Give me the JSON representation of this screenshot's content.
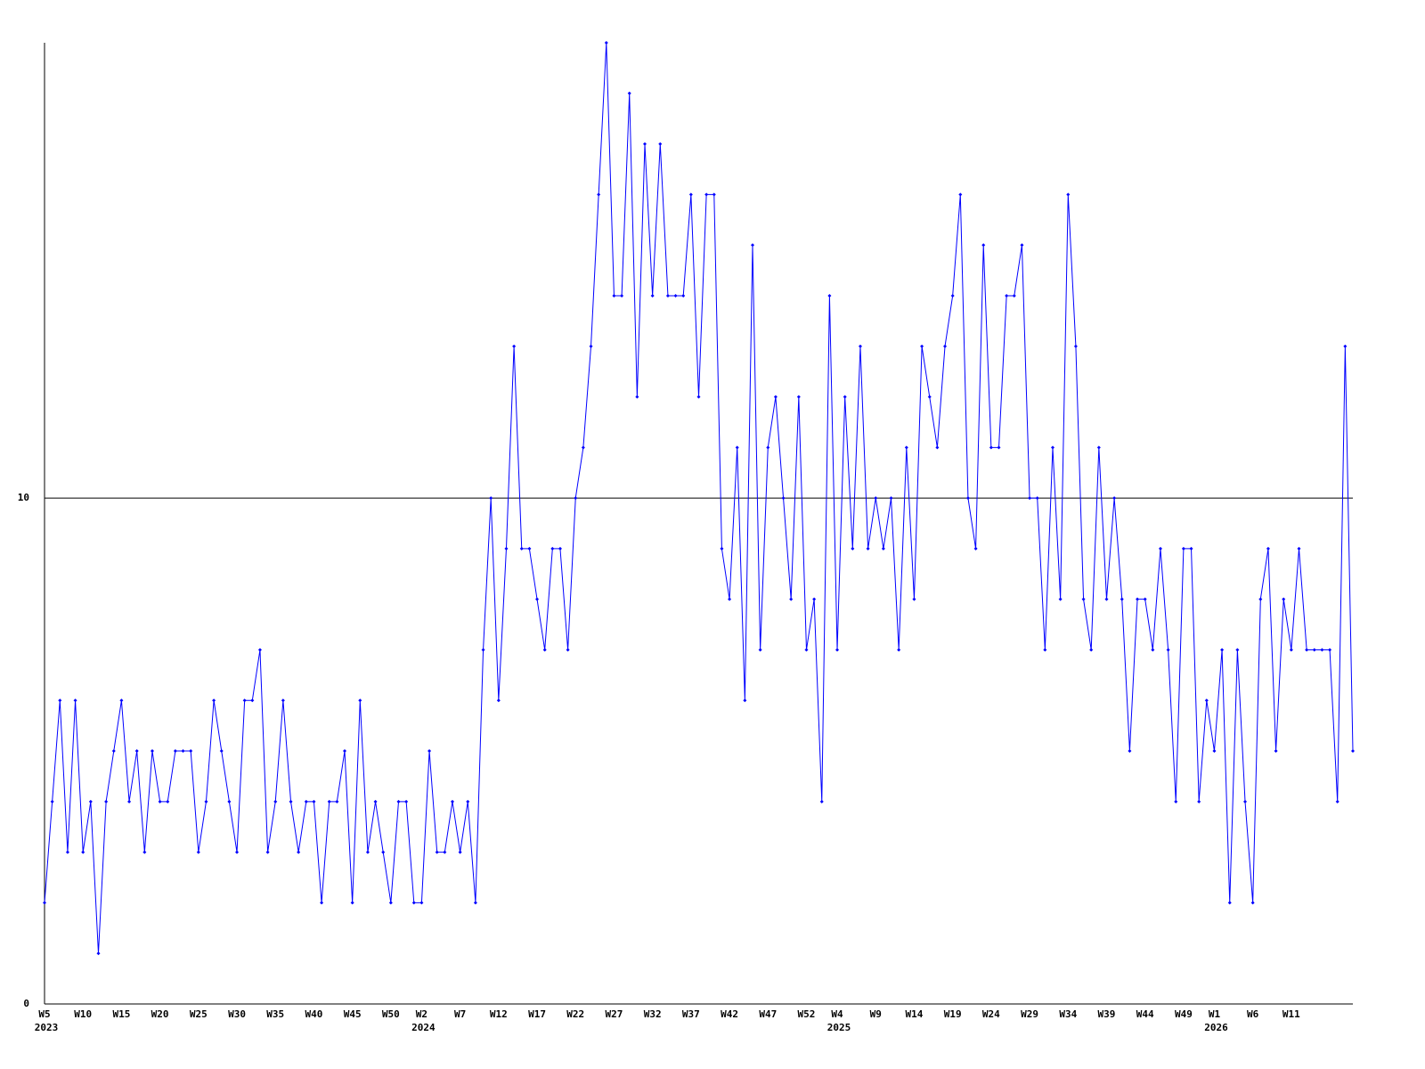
{
  "chart_data": {
    "type": "line",
    "categories": [
      "W5",
      null,
      null,
      null,
      null,
      "W10",
      null,
      null,
      null,
      null,
      "W15",
      null,
      null,
      null,
      null,
      "W20",
      null,
      null,
      null,
      null,
      "W25",
      null,
      null,
      null,
      null,
      "W30",
      null,
      null,
      null,
      null,
      "W35",
      null,
      null,
      null,
      null,
      "W40",
      null,
      null,
      null,
      null,
      "W45",
      null,
      null,
      null,
      null,
      "W50",
      null,
      null,
      null,
      "W2",
      null,
      null,
      null,
      null,
      "W7",
      null,
      null,
      null,
      null,
      "W12",
      null,
      null,
      null,
      null,
      "W17",
      null,
      null,
      null,
      null,
      "W22",
      null,
      null,
      null,
      null,
      "W27",
      null,
      null,
      null,
      null,
      "W32",
      null,
      null,
      null,
      null,
      "W37",
      null,
      null,
      null,
      null,
      "W42",
      null,
      null,
      null,
      null,
      "W47",
      null,
      null,
      null,
      null,
      "W52",
      null,
      null,
      null,
      "W4",
      null,
      null,
      null,
      null,
      "W9",
      null,
      null,
      null,
      null,
      "W14",
      null,
      null,
      null,
      null,
      "W19",
      null,
      null,
      null,
      null,
      "W24",
      null,
      null,
      null,
      null,
      "W29",
      null,
      null,
      null,
      null,
      "W34",
      null,
      null,
      null,
      null,
      "W39",
      null,
      null,
      null,
      null,
      "W44",
      null,
      null,
      null,
      null,
      "W49",
      null,
      null,
      null,
      "W1",
      null,
      null,
      null,
      null,
      "W6",
      null,
      null,
      null,
      null,
      "W11",
      null,
      null,
      null,
      null,
      null,
      null,
      null,
      null
    ],
    "category_years": [
      "2023",
      null,
      null,
      null,
      null,
      null,
      null,
      null,
      null,
      null,
      null,
      null,
      null,
      null,
      null,
      null,
      null,
      null,
      null,
      null,
      null,
      null,
      null,
      null,
      null,
      null,
      null,
      null,
      null,
      null,
      null,
      null,
      null,
      null,
      null,
      null,
      null,
      null,
      null,
      null,
      null,
      null,
      null,
      null,
      null,
      null,
      null,
      null,
      null,
      "2024",
      null,
      null,
      null,
      null,
      null,
      null,
      null,
      null,
      null,
      null,
      null,
      null,
      null,
      null,
      null,
      null,
      null,
      null,
      null,
      null,
      null,
      null,
      null,
      null,
      null,
      null,
      null,
      null,
      null,
      null,
      null,
      null,
      null,
      null,
      null,
      null,
      null,
      null,
      null,
      null,
      null,
      null,
      null,
      null,
      null,
      null,
      null,
      null,
      null,
      null,
      null,
      null,
      null,
      "2025",
      null,
      null,
      null,
      null,
      null,
      null,
      null,
      null,
      null,
      null,
      null,
      null,
      null,
      null,
      null,
      null,
      null,
      null,
      null,
      null,
      null,
      null,
      null,
      null,
      null,
      null,
      null,
      null,
      null,
      null,
      null,
      null,
      null,
      null,
      null,
      null,
      null,
      null,
      null,
      null,
      null,
      null,
      null,
      null,
      null,
      null,
      null,
      null,
      "2026",
      null,
      null,
      null,
      null,
      null,
      null,
      null,
      null,
      null,
      null,
      null,
      null,
      null,
      null,
      null,
      null,
      null,
      null
    ],
    "values": [
      2,
      4,
      6,
      3,
      6,
      3,
      4,
      1,
      4,
      5,
      6,
      4,
      5,
      3,
      5,
      4,
      4,
      5,
      5,
      5,
      3,
      4,
      6,
      5,
      4,
      3,
      6,
      6,
      7,
      3,
      4,
      6,
      4,
      3,
      4,
      4,
      2,
      4,
      4,
      5,
      2,
      6,
      3,
      4,
      3,
      2,
      4,
      4,
      2,
      2,
      5,
      3,
      3,
      4,
      3,
      4,
      2,
      7,
      10,
      6,
      9,
      13,
      9,
      9,
      8,
      7,
      9,
      9,
      7,
      10,
      11,
      13,
      16,
      19,
      14,
      14,
      18,
      12,
      17,
      14,
      17,
      14,
      14,
      14,
      16,
      12,
      16,
      16,
      9,
      8,
      11,
      6,
      15,
      7,
      11,
      12,
      10,
      8,
      12,
      7,
      8,
      4,
      14,
      7,
      12,
      9,
      13,
      9,
      10,
      9,
      10,
      7,
      11,
      8,
      13,
      12,
      11,
      13,
      14,
      16,
      10,
      9,
      15,
      11,
      11,
      14,
      14,
      15,
      10,
      10,
      7,
      11,
      8,
      16,
      13,
      8,
      7,
      11,
      8,
      10,
      8,
      5,
      8,
      8,
      7,
      9,
      7,
      4,
      9,
      9,
      4,
      6,
      5,
      7,
      2,
      7,
      4,
      2,
      8,
      9,
      5,
      8,
      7,
      9,
      7,
      7,
      7,
      7,
      4,
      13,
      5
    ],
    "color": "#0000ff",
    "ylim": [
      0,
      19
    ],
    "yticks": [
      0,
      10
    ],
    "grid": true
  }
}
